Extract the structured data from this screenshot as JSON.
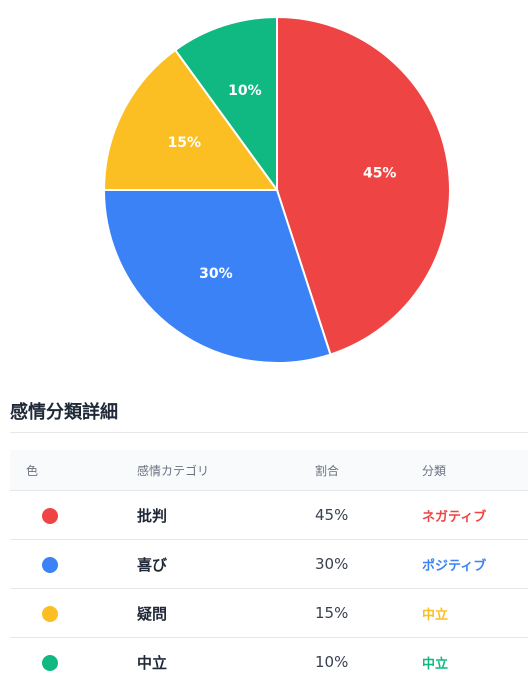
{
  "chart_data": {
    "type": "pie",
    "slices": [
      {
        "name": "批判",
        "value": 45,
        "label": "45%",
        "color": "#ef4444"
      },
      {
        "name": "喜び",
        "value": 30,
        "label": "30%",
        "color": "#3b82f6"
      },
      {
        "name": "疑問",
        "value": 15,
        "label": "15%",
        "color": "#fbbf24"
      },
      {
        "name": "中立",
        "value": 10,
        "label": "10%",
        "color": "#10b981"
      }
    ],
    "start": "top",
    "direction": "clockwise"
  },
  "section": {
    "title": "感情分類詳細"
  },
  "table": {
    "headers": {
      "color": "色",
      "category": "感情カテゴリ",
      "ratio": "割合",
      "classification": "分類"
    },
    "rows": [
      {
        "category": "批判",
        "ratio": "45%",
        "classification": "ネガティブ",
        "color": "#ef4444"
      },
      {
        "category": "喜び",
        "ratio": "30%",
        "classification": "ポジティブ",
        "color": "#3b82f6"
      },
      {
        "category": "疑問",
        "ratio": "15%",
        "classification": "中立",
        "color": "#fbbf24"
      },
      {
        "category": "中立",
        "ratio": "10%",
        "classification": "中立",
        "color": "#10b981"
      }
    ]
  }
}
